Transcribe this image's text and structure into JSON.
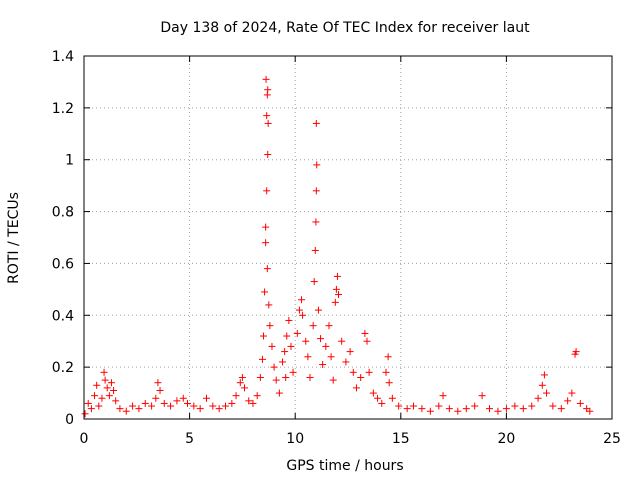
{
  "chart_data": {
    "type": "scatter",
    "title": "Day 138 of 2024, Rate Of TEC Index for receiver laut",
    "xlabel": "GPS time / hours",
    "ylabel": "ROTI / TECUs",
    "xlim": [
      0,
      25
    ],
    "ylim": [
      0,
      1.4
    ],
    "xticks": [
      0,
      5,
      10,
      15,
      20,
      25
    ],
    "xtick_labels": [
      "0",
      "5",
      "10",
      "15",
      "20",
      "25"
    ],
    "yticks": [
      0,
      0.2,
      0.4,
      0.6,
      0.8,
      1,
      1.2,
      1.4
    ],
    "ytick_labels": [
      "0",
      "0.2",
      "0.4",
      "0.6",
      "0.8",
      "1",
      "1.2",
      "1.4"
    ],
    "grid": true,
    "marker": "plus",
    "color": "#ff0000",
    "series": [
      {
        "points": [
          [
            0.05,
            0.02
          ],
          [
            0.2,
            0.06
          ],
          [
            0.35,
            0.04
          ],
          [
            0.5,
            0.09
          ],
          [
            0.6,
            0.13
          ],
          [
            0.7,
            0.05
          ],
          [
            0.85,
            0.08
          ],
          [
            0.95,
            0.18
          ],
          [
            1.0,
            0.15
          ],
          [
            1.1,
            0.12
          ],
          [
            1.2,
            0.09
          ],
          [
            1.3,
            0.14
          ],
          [
            1.4,
            0.11
          ],
          [
            1.5,
            0.07
          ],
          [
            1.7,
            0.04
          ],
          [
            2.0,
            0.03
          ],
          [
            2.3,
            0.05
          ],
          [
            2.6,
            0.04
          ],
          [
            2.9,
            0.06
          ],
          [
            3.2,
            0.05
          ],
          [
            3.4,
            0.08
          ],
          [
            3.5,
            0.14
          ],
          [
            3.6,
            0.11
          ],
          [
            3.8,
            0.06
          ],
          [
            4.1,
            0.05
          ],
          [
            4.4,
            0.07
          ],
          [
            4.7,
            0.08
          ],
          [
            4.9,
            0.06
          ],
          [
            5.2,
            0.05
          ],
          [
            5.5,
            0.04
          ],
          [
            5.8,
            0.08
          ],
          [
            6.1,
            0.05
          ],
          [
            6.4,
            0.04
          ],
          [
            6.7,
            0.05
          ],
          [
            7.0,
            0.06
          ],
          [
            7.2,
            0.09
          ],
          [
            7.4,
            0.14
          ],
          [
            7.5,
            0.16
          ],
          [
            7.6,
            0.12
          ],
          [
            7.8,
            0.07
          ],
          [
            8.0,
            0.06
          ],
          [
            8.2,
            0.09
          ],
          [
            8.35,
            0.16
          ],
          [
            8.45,
            0.23
          ],
          [
            8.5,
            0.32
          ],
          [
            8.55,
            0.49
          ],
          [
            8.6,
            0.68
          ],
          [
            8.65,
            0.88
          ],
          [
            8.7,
            1.02
          ],
          [
            8.72,
            1.14
          ],
          [
            8.65,
            1.17
          ],
          [
            8.68,
            1.25
          ],
          [
            8.7,
            1.27
          ],
          [
            8.62,
            1.31
          ],
          [
            8.6,
            0.74
          ],
          [
            8.68,
            0.58
          ],
          [
            8.75,
            0.44
          ],
          [
            8.8,
            0.36
          ],
          [
            8.9,
            0.28
          ],
          [
            9.0,
            0.2
          ],
          [
            9.1,
            0.15
          ],
          [
            9.25,
            0.1
          ],
          [
            9.4,
            0.22
          ],
          [
            9.5,
            0.26
          ],
          [
            9.55,
            0.16
          ],
          [
            9.6,
            0.32
          ],
          [
            9.7,
            0.38
          ],
          [
            9.8,
            0.28
          ],
          [
            9.9,
            0.18
          ],
          [
            10.1,
            0.33
          ],
          [
            10.2,
            0.42
          ],
          [
            10.3,
            0.46
          ],
          [
            10.35,
            0.4
          ],
          [
            10.5,
            0.3
          ],
          [
            10.6,
            0.24
          ],
          [
            10.7,
            0.16
          ],
          [
            10.85,
            0.36
          ],
          [
            10.9,
            0.53
          ],
          [
            10.95,
            0.65
          ],
          [
            10.98,
            0.76
          ],
          [
            11.0,
            0.88
          ],
          [
            11.02,
            0.98
          ],
          [
            11.0,
            1.14
          ],
          [
            11.1,
            0.42
          ],
          [
            11.2,
            0.31
          ],
          [
            11.3,
            0.21
          ],
          [
            11.45,
            0.28
          ],
          [
            11.6,
            0.36
          ],
          [
            11.7,
            0.24
          ],
          [
            11.8,
            0.15
          ],
          [
            11.9,
            0.45
          ],
          [
            11.95,
            0.5
          ],
          [
            12.0,
            0.55
          ],
          [
            12.05,
            0.48
          ],
          [
            12.2,
            0.3
          ],
          [
            12.4,
            0.22
          ],
          [
            12.6,
            0.26
          ],
          [
            12.75,
            0.18
          ],
          [
            12.9,
            0.12
          ],
          [
            13.1,
            0.16
          ],
          [
            13.3,
            0.33
          ],
          [
            13.4,
            0.3
          ],
          [
            13.5,
            0.18
          ],
          [
            13.7,
            0.1
          ],
          [
            13.9,
            0.08
          ],
          [
            14.1,
            0.06
          ],
          [
            14.3,
            0.18
          ],
          [
            14.4,
            0.24
          ],
          [
            14.45,
            0.14
          ],
          [
            14.6,
            0.08
          ],
          [
            14.9,
            0.05
          ],
          [
            15.3,
            0.04
          ],
          [
            15.6,
            0.05
          ],
          [
            16.0,
            0.04
          ],
          [
            16.4,
            0.03
          ],
          [
            16.8,
            0.05
          ],
          [
            17.0,
            0.09
          ],
          [
            17.3,
            0.04
          ],
          [
            17.7,
            0.03
          ],
          [
            18.1,
            0.04
          ],
          [
            18.5,
            0.05
          ],
          [
            18.85,
            0.09
          ],
          [
            19.2,
            0.04
          ],
          [
            19.6,
            0.03
          ],
          [
            20.0,
            0.04
          ],
          [
            20.4,
            0.05
          ],
          [
            20.8,
            0.04
          ],
          [
            21.2,
            0.05
          ],
          [
            21.5,
            0.08
          ],
          [
            21.7,
            0.13
          ],
          [
            21.8,
            0.17
          ],
          [
            21.9,
            0.1
          ],
          [
            22.2,
            0.05
          ],
          [
            22.6,
            0.04
          ],
          [
            22.9,
            0.07
          ],
          [
            23.1,
            0.1
          ],
          [
            23.25,
            0.25
          ],
          [
            23.3,
            0.26
          ],
          [
            23.5,
            0.06
          ],
          [
            23.8,
            0.04
          ],
          [
            23.95,
            0.03
          ]
        ]
      }
    ]
  }
}
